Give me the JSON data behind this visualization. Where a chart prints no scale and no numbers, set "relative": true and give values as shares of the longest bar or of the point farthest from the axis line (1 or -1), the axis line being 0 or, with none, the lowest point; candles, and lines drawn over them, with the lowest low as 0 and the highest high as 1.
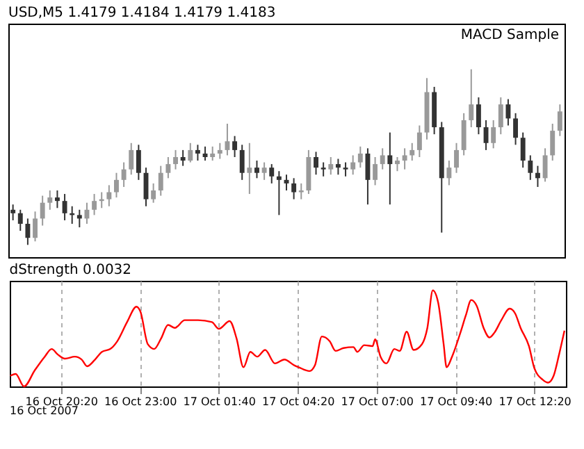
{
  "chart_data": [
    {
      "type": "candlestick",
      "title": "USD,M5 1.4179 1.4184 1.4179 1.4183",
      "relative": true,
      "colors": [
        "#333333",
        "#333333",
        "#333333",
        "#999999",
        "#999999",
        "#999999",
        "#333333",
        "#333333",
        "#333333",
        "#333333",
        "#999999",
        "#999999",
        "#999999",
        "#999999",
        "#999999",
        "#999999",
        "#999999",
        "#333333",
        "#333333",
        "#999999",
        "#999999",
        "#999999",
        "#999999",
        "#333333",
        "#999999",
        "#333333",
        "#333333",
        "#999999",
        "#999999",
        "#999999",
        "#333333",
        "#333333",
        "#999999",
        "#333333",
        "#999999",
        "#333333",
        "#333333",
        "#333333",
        "#333333",
        "#999999",
        "#999999",
        "#333333",
        "#333333",
        "#999999",
        "#333333",
        "#333333",
        "#999999",
        "#999999",
        "#333333",
        "#999999",
        "#999999",
        "#333333",
        "#999999",
        "#999999",
        "#999999",
        "#999999",
        "#999999",
        "#333333",
        "#333333",
        "#999999",
        "#999999",
        "#999999",
        "#999999",
        "#333333",
        "#333333",
        "#999999",
        "#999999",
        "#333333",
        "#333333",
        "#333333",
        "#333333",
        "#333333",
        "#999999",
        "#999999",
        "#999999"
      ],
      "tick_labels": false,
      "annotations": [
        "MACD Sample"
      ],
      "categories": [
        null,
        null,
        null,
        null,
        null,
        null,
        null,
        null,
        null,
        null,
        null,
        null,
        null,
        null,
        null,
        null,
        null,
        null,
        null,
        null,
        null,
        null,
        null,
        null,
        null,
        null,
        null,
        null,
        null,
        null,
        null,
        null,
        null,
        null,
        null,
        null,
        null,
        null,
        null,
        null,
        null,
        null,
        null,
        null,
        null,
        null,
        null,
        null,
        null,
        null,
        null,
        null,
        null,
        null,
        null,
        null,
        null,
        null,
        null,
        null,
        null,
        null,
        null,
        null,
        null,
        null,
        null,
        null,
        null,
        null,
        null,
        null,
        null,
        null,
        null
      ],
      "ohlc": [
        [
          0.2,
          0.23,
          0.14,
          0.18
        ],
        [
          0.18,
          0.2,
          0.08,
          0.12
        ],
        [
          0.12,
          0.15,
          0.0,
          0.04
        ],
        [
          0.04,
          0.19,
          0.02,
          0.15
        ],
        [
          0.15,
          0.28,
          0.11,
          0.24
        ],
        [
          0.24,
          0.31,
          0.2,
          0.27
        ],
        [
          0.27,
          0.31,
          0.21,
          0.25
        ],
        [
          0.25,
          0.29,
          0.14,
          0.18
        ],
        [
          0.18,
          0.22,
          0.12,
          0.17
        ],
        [
          0.17,
          0.2,
          0.1,
          0.15
        ],
        [
          0.15,
          0.24,
          0.12,
          0.2
        ],
        [
          0.2,
          0.29,
          0.17,
          0.25
        ],
        [
          0.25,
          0.3,
          0.21,
          0.26
        ],
        [
          0.26,
          0.34,
          0.22,
          0.3
        ],
        [
          0.3,
          0.41,
          0.27,
          0.37
        ],
        [
          0.37,
          0.47,
          0.33,
          0.43
        ],
        [
          0.43,
          0.58,
          0.4,
          0.54
        ],
        [
          0.54,
          0.57,
          0.37,
          0.41
        ],
        [
          0.41,
          0.44,
          0.22,
          0.26
        ],
        [
          0.26,
          0.35,
          0.24,
          0.31
        ],
        [
          0.31,
          0.45,
          0.28,
          0.41
        ],
        [
          0.41,
          0.5,
          0.38,
          0.46
        ],
        [
          0.46,
          0.54,
          0.43,
          0.5
        ],
        [
          0.5,
          0.54,
          0.45,
          0.48
        ],
        [
          0.48,
          0.58,
          0.47,
          0.54
        ],
        [
          0.54,
          0.57,
          0.48,
          0.52
        ],
        [
          0.52,
          0.56,
          0.48,
          0.5
        ],
        [
          0.5,
          0.56,
          0.48,
          0.52
        ],
        [
          0.52,
          0.58,
          0.49,
          0.54
        ],
        [
          0.54,
          0.69,
          0.51,
          0.59
        ],
        [
          0.59,
          0.62,
          0.5,
          0.54
        ],
        [
          0.54,
          0.57,
          0.37,
          0.41
        ],
        [
          0.41,
          0.58,
          0.29,
          0.44
        ],
        [
          0.44,
          0.48,
          0.38,
          0.41
        ],
        [
          0.41,
          0.47,
          0.37,
          0.44
        ],
        [
          0.44,
          0.46,
          0.35,
          0.39
        ],
        [
          0.39,
          0.42,
          0.17,
          0.37
        ],
        [
          0.37,
          0.4,
          0.31,
          0.35
        ],
        [
          0.35,
          0.38,
          0.26,
          0.3
        ],
        [
          0.3,
          0.35,
          0.26,
          0.31
        ],
        [
          0.31,
          0.54,
          0.29,
          0.5
        ],
        [
          0.5,
          0.53,
          0.4,
          0.44
        ],
        [
          0.44,
          0.47,
          0.39,
          0.43
        ],
        [
          0.43,
          0.5,
          0.4,
          0.46
        ],
        [
          0.46,
          0.49,
          0.4,
          0.44
        ],
        [
          0.44,
          0.47,
          0.39,
          0.43
        ],
        [
          0.43,
          0.51,
          0.4,
          0.47
        ],
        [
          0.47,
          0.56,
          0.44,
          0.52
        ],
        [
          0.52,
          0.55,
          0.23,
          0.37
        ],
        [
          0.37,
          0.5,
          0.34,
          0.46
        ],
        [
          0.46,
          0.55,
          0.43,
          0.51
        ],
        [
          0.51,
          0.64,
          0.23,
          0.46
        ],
        [
          0.46,
          0.5,
          0.42,
          0.48
        ],
        [
          0.48,
          0.55,
          0.43,
          0.51
        ],
        [
          0.51,
          0.58,
          0.48,
          0.54
        ],
        [
          0.54,
          0.68,
          0.5,
          0.64
        ],
        [
          0.64,
          0.95,
          0.6,
          0.87
        ],
        [
          0.87,
          0.9,
          0.63,
          0.67
        ],
        [
          0.67,
          0.7,
          0.07,
          0.38
        ],
        [
          0.38,
          0.48,
          0.34,
          0.44
        ],
        [
          0.44,
          0.58,
          0.41,
          0.54
        ],
        [
          0.54,
          0.75,
          0.51,
          0.71
        ],
        [
          0.71,
          1.0,
          0.67,
          0.8
        ],
        [
          0.8,
          0.84,
          0.63,
          0.67
        ],
        [
          0.67,
          0.71,
          0.54,
          0.58
        ],
        [
          0.58,
          0.71,
          0.55,
          0.67
        ],
        [
          0.67,
          0.84,
          0.63,
          0.8
        ],
        [
          0.8,
          0.83,
          0.68,
          0.72
        ],
        [
          0.72,
          0.75,
          0.57,
          0.61
        ],
        [
          0.61,
          0.64,
          0.44,
          0.48
        ],
        [
          0.48,
          0.51,
          0.37,
          0.41
        ],
        [
          0.41,
          0.45,
          0.33,
          0.38
        ],
        [
          0.38,
          0.55,
          0.36,
          0.51
        ],
        [
          0.51,
          0.69,
          0.48,
          0.65
        ],
        [
          0.65,
          0.8,
          0.62,
          0.76
        ]
      ]
    },
    {
      "type": "line",
      "title": "dStrength 0.0032",
      "relative": true,
      "grid": "x",
      "tick_labels": "x",
      "annotations": [
        "16 Oct 2007"
      ],
      "xlim": [
        "2007-10-16T18:36",
        "2007-10-17T13:24"
      ],
      "xticks": [
        {
          "value": "2007-10-16T20:20",
          "label": "16 Oct 20:20"
        },
        {
          "value": "2007-10-16T23:00",
          "label": "16 Oct 23:00"
        },
        {
          "value": "2007-10-17T01:40",
          "label": "17 Oct 01:40"
        },
        {
          "value": "2007-10-17T04:20",
          "label": "17 Oct 04:20"
        },
        {
          "value": "2007-10-17T07:00",
          "label": "17 Oct 07:00"
        },
        {
          "value": "2007-10-17T09:40",
          "label": "17 Oct 09:40"
        },
        {
          "value": "2007-10-17T12:20",
          "label": "17 Oct 12:20"
        }
      ],
      "series": [
        {
          "color": "#ff0000",
          "x": [
            "2007-10-16T18:37",
            "2007-10-16T18:48",
            "2007-10-16T19:05",
            "2007-10-16T19:27",
            "2007-10-16T19:47",
            "2007-10-16T20:01",
            "2007-10-16T20:14",
            "2007-10-16T20:28",
            "2007-10-16T20:48",
            "2007-10-16T21:02",
            "2007-10-16T21:13",
            "2007-10-16T21:29",
            "2007-10-16T21:43",
            "2007-10-16T22:00",
            "2007-10-16T22:14",
            "2007-10-16T22:34",
            "2007-10-16T22:53",
            "2007-10-16T23:01",
            "2007-10-16T23:16",
            "2007-10-16T23:29",
            "2007-10-16T23:43",
            "2007-10-16T23:57",
            "2007-10-17T00:11",
            "2007-10-17T00:31",
            "2007-10-17T00:58",
            "2007-10-17T01:26",
            "2007-10-17T01:40",
            "2007-10-17T02:02",
            "2007-10-17T02:16",
            "2007-10-17T02:30",
            "2007-10-17T02:44",
            "2007-10-17T02:58",
            "2007-10-17T03:14",
            "2007-10-17T03:34",
            "2007-10-17T03:53",
            "2007-10-17T04:13",
            "2007-10-17T04:22",
            "2007-10-17T04:44",
            "2007-10-17T04:55",
            "2007-10-17T05:09",
            "2007-10-17T05:25",
            "2007-10-17T05:37",
            "2007-10-17T05:53",
            "2007-10-17T06:13",
            "2007-10-17T06:21",
            "2007-10-17T06:35",
            "2007-10-17T06:52",
            "2007-10-17T06:57",
            "2007-10-17T07:08",
            "2007-10-17T07:20",
            "2007-10-17T07:36",
            "2007-10-17T07:47",
            "2007-10-17T08:01",
            "2007-10-17T08:15",
            "2007-10-17T08:32",
            "2007-10-17T08:43",
            "2007-10-17T08:54",
            "2007-10-17T09:05",
            "2007-10-17T09:16",
            "2007-10-17T09:22",
            "2007-10-17T09:33",
            "2007-10-17T09:50",
            "2007-10-17T10:01",
            "2007-10-17T10:12",
            "2007-10-17T10:23",
            "2007-10-17T10:37",
            "2007-10-17T10:49",
            "2007-10-17T10:59",
            "2007-10-17T11:13",
            "2007-10-17T11:30",
            "2007-10-17T11:41",
            "2007-10-17T11:52",
            "2007-10-17T12:09",
            "2007-10-17T12:20",
            "2007-10-17T12:37",
            "2007-10-17T12:48",
            "2007-10-17T12:59",
            "2007-10-17T13:10",
            "2007-10-17T13:21"
          ],
          "values": [
            0.11,
            0.13,
            0,
            0.17,
            0.31,
            0.39,
            0.33,
            0.29,
            0.31,
            0.28,
            0.21,
            0.28,
            0.36,
            0.39,
            0.47,
            0.67,
            0.83,
            0.78,
            0.44,
            0.39,
            0.5,
            0.64,
            0.61,
            0.69,
            0.69,
            0.67,
            0.6,
            0.68,
            0.5,
            0.2,
            0.36,
            0.31,
            0.38,
            0.24,
            0.28,
            0.22,
            0.2,
            0.16,
            0.22,
            0.52,
            0.47,
            0.37,
            0.4,
            0.41,
            0.36,
            0.43,
            0.42,
            0.49,
            0.31,
            0.24,
            0.39,
            0.37,
            0.57,
            0.38,
            0.44,
            0.61,
            1.0,
            0.87,
            0.44,
            0.2,
            0.31,
            0.56,
            0.74,
            0.9,
            0.84,
            0.61,
            0.51,
            0.56,
            0.69,
            0.81,
            0.76,
            0.61,
            0.42,
            0.19,
            0.07,
            0.04,
            0.11,
            0.33,
            0.58
          ]
        }
      ]
    }
  ]
}
